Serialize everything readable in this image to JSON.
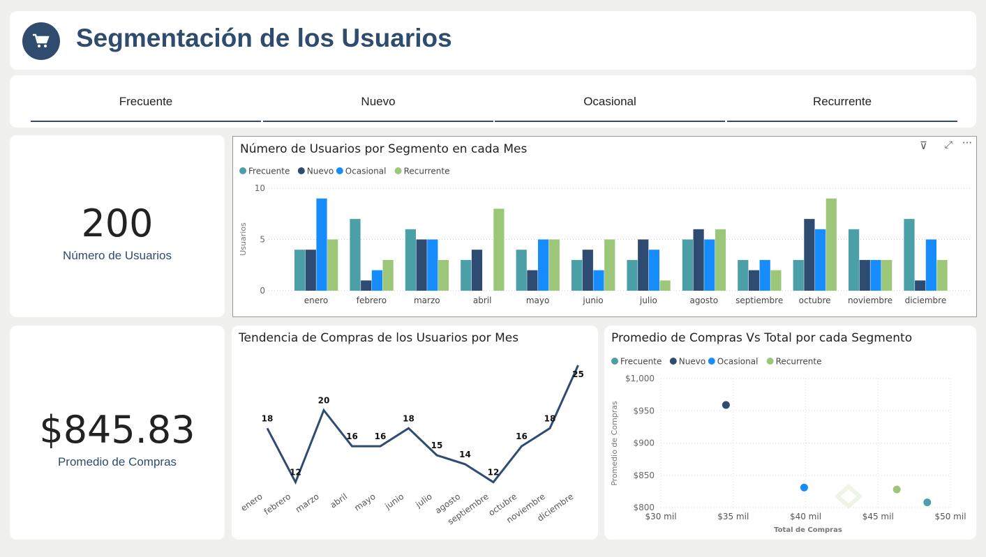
{
  "header": {
    "title": "Segmentación de los Usuarios",
    "icon": "cart-icon"
  },
  "tabs": [
    "Frecuente",
    "Nuevo",
    "Ocasional",
    "Recurrente"
  ],
  "kpis": {
    "users_value": "200",
    "users_label": "Número de Usuarios",
    "avg_value": "$845.83",
    "avg_label": "Promedio de Compras"
  },
  "colors": {
    "Frecuente": "#4aa0a6",
    "Nuevo": "#2e4b72",
    "Ocasional": "#168cff",
    "Recurrente": "#9dc778"
  },
  "watermark": "Platzi",
  "chart_data": [
    {
      "type": "bar",
      "title": "Número de Usuarios por Segmento en cada Mes",
      "ylabel": "Usuarios",
      "xlabel": "",
      "ylim": [
        0,
        10
      ],
      "yticks": [
        "0",
        "5",
        "10"
      ],
      "categories": [
        "enero",
        "febrero",
        "marzo",
        "abril",
        "mayo",
        "junio",
        "julio",
        "agosto",
        "septiembre",
        "octubre",
        "noviembre",
        "diciembre"
      ],
      "series": [
        {
          "name": "Frecuente",
          "values": [
            4,
            7,
            6,
            3,
            4,
            3,
            3,
            5,
            3,
            3,
            6,
            7
          ]
        },
        {
          "name": "Nuevo",
          "values": [
            4,
            1,
            5,
            4,
            2,
            4,
            5,
            6,
            2,
            7,
            3,
            1
          ]
        },
        {
          "name": "Ocasional",
          "values": [
            9,
            2,
            5,
            0,
            5,
            2,
            4,
            5,
            3,
            6,
            3,
            5
          ]
        },
        {
          "name": "Recurrente",
          "values": [
            5,
            3,
            3,
            8,
            5,
            5,
            1,
            6,
            2,
            9,
            3,
            3
          ]
        }
      ],
      "legend": "top-left",
      "grid": true
    },
    {
      "type": "line",
      "title": "Tendencia de Compras de los Usuarios por Mes",
      "categories": [
        "enero",
        "febrero",
        "marzo",
        "abril",
        "mayo",
        "junio",
        "julio",
        "agosto",
        "septiembre",
        "octubre",
        "noviembre",
        "diciembre"
      ],
      "values": [
        18,
        12,
        20,
        16,
        16,
        18,
        15,
        14,
        12,
        16,
        18,
        25
      ],
      "data_labels": true
    },
    {
      "type": "scatter",
      "title": "Promedio de Compras Vs Total por cada Segmento",
      "xlabel": "Total de Compras",
      "ylabel": "Promedio de Compras",
      "xlim": [
        30,
        50
      ],
      "ylim": [
        800,
        1000
      ],
      "xticks": [
        "$30 mil",
        "$35 mil",
        "$40 mil",
        "$45 mil",
        "$50 mil"
      ],
      "yticks": [
        "$800",
        "$850",
        "$900",
        "$950",
        "$1,000"
      ],
      "points": [
        {
          "name": "Nuevo",
          "x": 34.5,
          "y": 959
        },
        {
          "name": "Ocasional",
          "x": 39.9,
          "y": 831
        },
        {
          "name": "Recurrente",
          "x": 46.3,
          "y": 828
        },
        {
          "name": "Frecuente",
          "x": 48.4,
          "y": 808
        }
      ],
      "legend": "top-left",
      "grid": true
    }
  ]
}
